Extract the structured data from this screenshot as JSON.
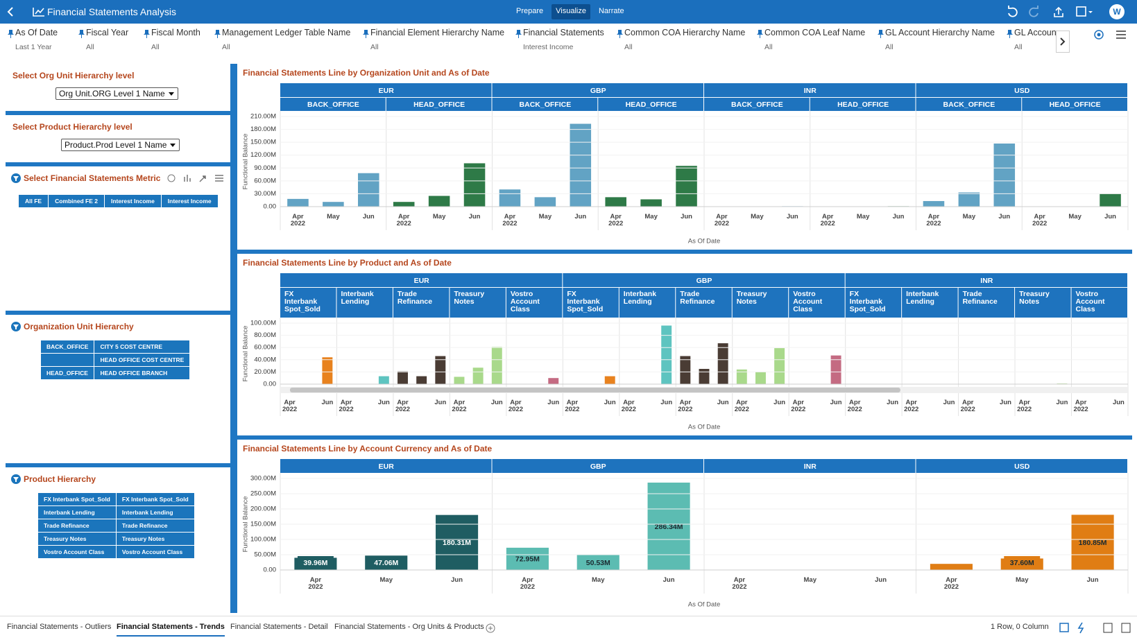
{
  "header": {
    "title": "Financial Statements Analysis",
    "modes": [
      "Prepare",
      "Visualize",
      "Narrate"
    ],
    "active_mode": 1,
    "user": "W"
  },
  "filters": [
    {
      "name": "As Of Date",
      "value": "Last 1 Year"
    },
    {
      "name": "Fiscal Year",
      "value": "All"
    },
    {
      "name": "Fiscal Month",
      "value": "All"
    },
    {
      "name": "Management Ledger Table Name",
      "value": "All"
    },
    {
      "name": "Financial Element Hierarchy Name",
      "value": "All"
    },
    {
      "name": "Financial Statements",
      "value": "Interest Income"
    },
    {
      "name": "Common COA Hierarchy Name",
      "value": "All"
    },
    {
      "name": "Common COA Leaf Name",
      "value": "All"
    },
    {
      "name": "GL Account Hierarchy Name",
      "value": "All"
    },
    {
      "name": "GL Account",
      "value": "All"
    }
  ],
  "left_panels": {
    "org_level": {
      "title": "Select Org Unit Hierarchy level",
      "selected": "Org Unit.ORG Level 1 Name"
    },
    "product_level": {
      "title": "Select Product Hierarchy level",
      "selected": "Product.Prod Level 1 Name"
    },
    "metric": {
      "title": "Select Financial Statements Metric",
      "options": [
        "All FE",
        "Combined FE 2",
        "Interest Income",
        "Interest Income"
      ]
    },
    "org_hierarchy": {
      "title": "Organization Unit Hierarchy",
      "rows": [
        [
          "BACK_OFFICE",
          "CITY 5 COST CENTRE"
        ],
        [
          null,
          "HEAD OFFICE COST CENTRE"
        ],
        [
          "HEAD_OFFICE",
          "HEAD OFFICE BRANCH"
        ]
      ]
    },
    "product_hierarchy": {
      "title": "Product Hierarchy",
      "rows": [
        [
          "FX Interbank Spot_Sold",
          "FX Interbank Spot_Sold"
        ],
        [
          "Interbank Lending",
          "Interbank Lending"
        ],
        [
          "Trade Refinance",
          "Trade Refinance"
        ],
        [
          "Treasury Notes",
          "Treasury Notes"
        ],
        [
          "Vostro Account Class",
          "Vostro Account Class"
        ]
      ]
    }
  },
  "chart_data": [
    {
      "type": "bar",
      "title": "Financial Statements Line by Organization Unit and As of Date",
      "y_label": "Functional Balance",
      "x_label": "As Of Date",
      "ylim": [
        0,
        210
      ],
      "yticks": [
        {
          "value": 0,
          "label": "0.00"
        },
        {
          "value": 30,
          "label": "30.00M"
        },
        {
          "value": 60,
          "label": "60.00M"
        },
        {
          "value": 90,
          "label": "90.00M"
        },
        {
          "value": 120,
          "label": "120.00M"
        },
        {
          "value": 150,
          "label": "150.00M"
        },
        {
          "value": 180,
          "label": "180.00M"
        },
        {
          "value": 210,
          "label": "210.00M"
        }
      ],
      "categories": [
        "Apr 2022",
        "May",
        "Jun"
      ],
      "panels": [
        {
          "group": "EUR",
          "name": "BACK_OFFICE",
          "color": "#62a3c4",
          "values": [
            18,
            11,
            78
          ]
        },
        {
          "group": "EUR",
          "name": "HEAD_OFFICE",
          "color": "#2e7a47",
          "values": [
            11,
            25,
            101
          ]
        },
        {
          "group": "GBP",
          "name": "BACK_OFFICE",
          "color": "#62a3c4",
          "values": [
            40,
            22,
            193
          ]
        },
        {
          "group": "GBP",
          "name": "HEAD_OFFICE",
          "color": "#2e7a47",
          "values": [
            22,
            17,
            95
          ]
        },
        {
          "group": "INR",
          "name": "BACK_OFFICE",
          "color": "#62a3c4",
          "values": [
            null,
            null,
            1
          ]
        },
        {
          "group": "INR",
          "name": "HEAD_OFFICE",
          "color": "#2e7a47",
          "values": [
            null,
            null,
            1
          ]
        },
        {
          "group": "USD",
          "name": "BACK_OFFICE",
          "color": "#62a3c4",
          "values": [
            13,
            33,
            147
          ]
        },
        {
          "group": "USD",
          "name": "HEAD_OFFICE",
          "color": "#2e7a47",
          "values": [
            null,
            null,
            30
          ]
        }
      ]
    },
    {
      "type": "bar",
      "title": "Financial Statements Line by Product and As of Date",
      "y_label": "Functional Balance",
      "x_label": "As Of Date",
      "ylim": [
        0,
        100
      ],
      "yticks": [
        {
          "value": 0,
          "label": "0.00"
        },
        {
          "value": 20,
          "label": "20.00M"
        },
        {
          "value": 40,
          "label": "40.00M"
        },
        {
          "value": 60,
          "label": "60.00M"
        },
        {
          "value": 80,
          "label": "80.00M"
        },
        {
          "value": 100,
          "label": "100.00M"
        }
      ],
      "categories": [
        "Apr 2022",
        null,
        "Jun"
      ],
      "panels": [
        {
          "group": "EUR",
          "name": "FX Interbank Spot_Sold",
          "color": "#e8821e",
          "values": [
            null,
            null,
            44
          ]
        },
        {
          "group": "EUR",
          "name": "Interbank Lending",
          "color": "#5ec4c0",
          "values": [
            null,
            null,
            13
          ]
        },
        {
          "group": "EUR",
          "name": "Trade Refinance",
          "color": "#4a3c34",
          "values": [
            21,
            13,
            46
          ]
        },
        {
          "group": "EUR",
          "name": "Treasury Notes",
          "color": "#a9d98b",
          "values": [
            12,
            27,
            61
          ]
        },
        {
          "group": "EUR",
          "name": "Vostro Account Class",
          "color": "#c46b82",
          "values": [
            null,
            null,
            10
          ]
        },
        {
          "group": "GBP",
          "name": "FX Interbank Spot_Sold",
          "color": "#e8821e",
          "values": [
            null,
            null,
            13
          ]
        },
        {
          "group": "GBP",
          "name": "Interbank Lending",
          "color": "#5ec4c0",
          "values": [
            null,
            null,
            96
          ]
        },
        {
          "group": "GBP",
          "name": "Trade Refinance",
          "color": "#4a3c34",
          "values": [
            46,
            25,
            67
          ]
        },
        {
          "group": "GBP",
          "name": "Treasury Notes",
          "color": "#a9d98b",
          "values": [
            24,
            20,
            59
          ]
        },
        {
          "group": "GBP",
          "name": "Vostro Account Class",
          "color": "#c46b82",
          "values": [
            null,
            null,
            47
          ]
        },
        {
          "group": "INR",
          "name": "FX Interbank Spot_Sold",
          "color": "#e8821e",
          "values": [
            null,
            null,
            null
          ]
        },
        {
          "group": "INR",
          "name": "Interbank Lending",
          "color": "#5ec4c0",
          "values": [
            null,
            null,
            null
          ]
        },
        {
          "group": "INR",
          "name": "Trade Refinance",
          "color": "#4a3c34",
          "values": [
            null,
            null,
            null
          ]
        },
        {
          "group": "INR",
          "name": "Treasury Notes",
          "color": "#a9d98b",
          "values": [
            null,
            null,
            1
          ]
        },
        {
          "group": "INR",
          "name": "Vostro Account Class",
          "color": "#c46b82",
          "values": [
            null,
            null,
            null
          ]
        }
      ]
    },
    {
      "type": "bar",
      "title": "Financial Statements Line by Account Currency and As of Date",
      "y_label": "Functional Balance",
      "x_label": "As Of Date",
      "ylim": [
        0,
        300
      ],
      "yticks": [
        {
          "value": 0,
          "label": "0.00"
        },
        {
          "value": 50,
          "label": "50.00M"
        },
        {
          "value": 100,
          "label": "100.00M"
        },
        {
          "value": 150,
          "label": "150.00M"
        },
        {
          "value": 200,
          "label": "200.00M"
        },
        {
          "value": 250,
          "label": "250.00M"
        },
        {
          "value": 300,
          "label": "300.00M"
        }
      ],
      "categories": [
        "Apr 2022",
        "May",
        "Jun"
      ],
      "panels": [
        {
          "group": "EUR",
          "color": "#1f5d62",
          "values": [
            39.96,
            47.06,
            180.31
          ],
          "value_labels": [
            "39.96M",
            "47.06M",
            "180.31M"
          ]
        },
        {
          "group": "GBP",
          "color": "#5cbcb2",
          "values": [
            72.95,
            50.53,
            286.34
          ],
          "value_labels": [
            "72.95M",
            "50.53M",
            "286.34M"
          ]
        },
        {
          "group": "INR",
          "color": "#3b2b2b",
          "values": [
            null,
            null,
            1
          ],
          "value_labels": [
            null,
            null,
            null
          ]
        },
        {
          "group": "USD",
          "color": "#e07d14",
          "values": [
            20,
            37.6,
            180.85
          ],
          "value_labels": [
            null,
            "37.60M",
            "180.85M"
          ]
        }
      ]
    }
  ],
  "tabs": [
    "Financial Statements - Outliers",
    "Financial Statements - Trends",
    "Financial Statements - Detail",
    "Financial Statements - Org Units & Products"
  ],
  "active_tab": 1,
  "status": "1 Row, 0 Column"
}
